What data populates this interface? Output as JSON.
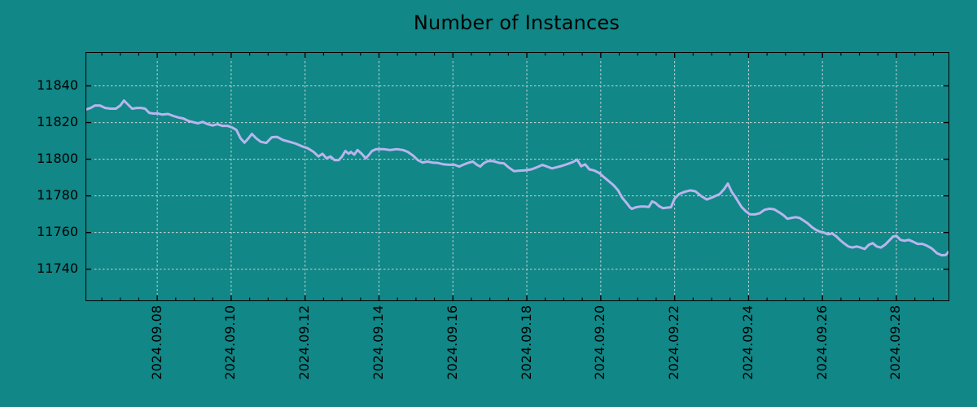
{
  "style": {
    "background": "#118787",
    "plot_background": "#118787",
    "line_color": "#b9b5ee",
    "grid_color": "#c9d6d6",
    "axis_color": "#000000",
    "text_color": "#000000"
  },
  "chart_data": {
    "type": "line",
    "title": "Number of Instances",
    "xlabel": "",
    "ylabel": "",
    "legend": null,
    "grid": {
      "show": true,
      "style": "dashed"
    },
    "x_axis": {
      "unit": "date (September 2024, fractional day)",
      "lim": [
        6.08,
        29.41
      ],
      "major_tick_days": [
        8,
        10,
        12,
        14,
        16,
        18,
        20,
        22,
        24,
        26,
        28
      ],
      "major_tick_labels": [
        "2024.09.08",
        "2024.09.10",
        "2024.09.12",
        "2024.09.14",
        "2024.09.16",
        "2024.09.18",
        "2024.09.20",
        "2024.09.22",
        "2024.09.24",
        "2024.09.26",
        "2024.09.28"
      ],
      "minor_tick_step": 0.5,
      "tick_label_rotation_deg": 90
    },
    "y_axis": {
      "lim": [
        11723,
        11858
      ],
      "major_ticks": [
        11840,
        11820,
        11800,
        11780,
        11760,
        11740
      ],
      "major_tick_labels": [
        "11840",
        "11820",
        "11800",
        "11780",
        "11760",
        "11740"
      ]
    },
    "series": [
      {
        "name": "Number of Instances",
        "color": "#b9b5ee",
        "points": [
          [
            6.08,
            11827.2
          ],
          [
            6.2,
            11828
          ],
          [
            6.31,
            11829.3
          ],
          [
            6.45,
            11829.3
          ],
          [
            6.59,
            11828
          ],
          [
            6.74,
            11827.6
          ],
          [
            6.88,
            11827.6
          ],
          [
            7.0,
            11829.3
          ],
          [
            7.1,
            11832
          ],
          [
            7.21,
            11829.8
          ],
          [
            7.32,
            11827.6
          ],
          [
            7.45,
            11828
          ],
          [
            7.56,
            11828
          ],
          [
            7.67,
            11827.6
          ],
          [
            7.78,
            11825.3
          ],
          [
            7.89,
            11824.9
          ],
          [
            8.0,
            11825
          ],
          [
            8.13,
            11824.4
          ],
          [
            8.29,
            11824.7
          ],
          [
            8.44,
            11823.6
          ],
          [
            8.57,
            11822.8
          ],
          [
            8.71,
            11822.2
          ],
          [
            8.84,
            11820.9
          ],
          [
            8.97,
            11820.2
          ],
          [
            9.1,
            11819.6
          ],
          [
            9.23,
            11820.4
          ],
          [
            9.37,
            11819.1
          ],
          [
            9.5,
            11818.4
          ],
          [
            9.63,
            11819.1
          ],
          [
            9.76,
            11818.2
          ],
          [
            9.9,
            11818.2
          ],
          [
            10.03,
            11817.3
          ],
          [
            10.14,
            11816
          ],
          [
            10.25,
            11811.5
          ],
          [
            10.36,
            11809
          ],
          [
            10.45,
            11811
          ],
          [
            10.56,
            11813.8
          ],
          [
            10.67,
            11811.5
          ],
          [
            10.8,
            11809.5
          ],
          [
            10.95,
            11808.9
          ],
          [
            11.1,
            11812
          ],
          [
            11.24,
            11812.2
          ],
          [
            11.4,
            11810.5
          ],
          [
            11.58,
            11809.5
          ],
          [
            11.75,
            11808.5
          ],
          [
            11.92,
            11807
          ],
          [
            12.07,
            11806
          ],
          [
            12.23,
            11804
          ],
          [
            12.36,
            11801.5
          ],
          [
            12.47,
            11803
          ],
          [
            12.58,
            11800.5
          ],
          [
            12.69,
            11801.5
          ],
          [
            12.8,
            11799.5
          ],
          [
            12.91,
            11799.5
          ],
          [
            13.0,
            11801.5
          ],
          [
            13.09,
            11804.5
          ],
          [
            13.18,
            11803
          ],
          [
            13.24,
            11804
          ],
          [
            13.33,
            11802.5
          ],
          [
            13.42,
            11805
          ],
          [
            13.53,
            11803
          ],
          [
            13.64,
            11800.5
          ],
          [
            13.73,
            11802.5
          ],
          [
            13.81,
            11804.5
          ],
          [
            13.92,
            11805.5
          ],
          [
            14.12,
            11805.5
          ],
          [
            14.3,
            11805
          ],
          [
            14.48,
            11805.5
          ],
          [
            14.65,
            11805
          ],
          [
            14.78,
            11804
          ],
          [
            14.92,
            11802
          ],
          [
            15.05,
            11799.5
          ],
          [
            15.18,
            11798.2
          ],
          [
            15.31,
            11798.7
          ],
          [
            15.44,
            11798.2
          ],
          [
            15.58,
            11798
          ],
          [
            15.73,
            11797.3
          ],
          [
            15.88,
            11797
          ],
          [
            16.04,
            11797
          ],
          [
            16.17,
            11796
          ],
          [
            16.28,
            11797
          ],
          [
            16.41,
            11798
          ],
          [
            16.54,
            11798.7
          ],
          [
            16.65,
            11797
          ],
          [
            16.74,
            11796
          ],
          [
            16.83,
            11797.8
          ],
          [
            16.94,
            11799
          ],
          [
            17.09,
            11799
          ],
          [
            17.25,
            11798
          ],
          [
            17.38,
            11797.8
          ],
          [
            17.51,
            11795.5
          ],
          [
            17.65,
            11793.5
          ],
          [
            17.82,
            11793.8
          ],
          [
            17.98,
            11794
          ],
          [
            18.13,
            11794.5
          ],
          [
            18.26,
            11795.5
          ],
          [
            18.42,
            11796.9
          ],
          [
            18.55,
            11796
          ],
          [
            18.68,
            11795
          ],
          [
            18.84,
            11795.8
          ],
          [
            18.97,
            11796.5
          ],
          [
            19.12,
            11797.5
          ],
          [
            19.25,
            11798.5
          ],
          [
            19.36,
            11799.8
          ],
          [
            19.47,
            11796.2
          ],
          [
            19.58,
            11797.2
          ],
          [
            19.69,
            11794.5
          ],
          [
            19.83,
            11793.8
          ],
          [
            19.96,
            11792.5
          ],
          [
            20.09,
            11790.2
          ],
          [
            20.22,
            11788
          ],
          [
            20.35,
            11785.8
          ],
          [
            20.47,
            11783
          ],
          [
            20.58,
            11779
          ],
          [
            20.69,
            11776.4
          ],
          [
            20.78,
            11774
          ],
          [
            20.84,
            11772.9
          ],
          [
            20.95,
            11773.8
          ],
          [
            21.08,
            11774.2
          ],
          [
            21.19,
            11774.2
          ],
          [
            21.3,
            11774
          ],
          [
            21.39,
            11777
          ],
          [
            21.48,
            11776.2
          ],
          [
            21.57,
            11774.5
          ],
          [
            21.68,
            11773.3
          ],
          [
            21.79,
            11773.6
          ],
          [
            21.9,
            11773.8
          ],
          [
            22.0,
            11778.5
          ],
          [
            22.12,
            11781
          ],
          [
            22.27,
            11782.2
          ],
          [
            22.42,
            11783
          ],
          [
            22.56,
            11782.5
          ],
          [
            22.71,
            11780
          ],
          [
            22.87,
            11778
          ],
          [
            23.0,
            11779
          ],
          [
            23.11,
            11780
          ],
          [
            23.22,
            11781
          ],
          [
            23.33,
            11783.5
          ],
          [
            23.44,
            11786.7
          ],
          [
            23.55,
            11782
          ],
          [
            23.64,
            11779.5
          ],
          [
            23.73,
            11776.5
          ],
          [
            23.81,
            11774
          ],
          [
            23.92,
            11771.7
          ],
          [
            24.03,
            11770
          ],
          [
            24.17,
            11769.9
          ],
          [
            24.3,
            11770.5
          ],
          [
            24.43,
            11772.4
          ],
          [
            24.56,
            11773
          ],
          [
            24.69,
            11772.7
          ],
          [
            24.83,
            11771
          ],
          [
            24.94,
            11769.5
          ],
          [
            25.05,
            11767.5
          ],
          [
            25.16,
            11768
          ],
          [
            25.27,
            11768.4
          ],
          [
            25.38,
            11768
          ],
          [
            25.49,
            11766.5
          ],
          [
            25.6,
            11765
          ],
          [
            25.71,
            11763
          ],
          [
            25.82,
            11761.5
          ],
          [
            25.93,
            11760.5
          ],
          [
            26.04,
            11760
          ],
          [
            26.15,
            11759
          ],
          [
            26.26,
            11759.5
          ],
          [
            26.37,
            11758
          ],
          [
            26.48,
            11755.8
          ],
          [
            26.59,
            11754
          ],
          [
            26.7,
            11752.4
          ],
          [
            26.81,
            11751.8
          ],
          [
            26.92,
            11752.4
          ],
          [
            27.03,
            11751.8
          ],
          [
            27.14,
            11751
          ],
          [
            27.25,
            11753.3
          ],
          [
            27.36,
            11754.2
          ],
          [
            27.47,
            11752.4
          ],
          [
            27.58,
            11751.8
          ],
          [
            27.69,
            11753.3
          ],
          [
            27.8,
            11755.5
          ],
          [
            27.91,
            11757.8
          ],
          [
            28.0,
            11758.2
          ],
          [
            28.11,
            11756
          ],
          [
            28.22,
            11755.5
          ],
          [
            28.33,
            11756
          ],
          [
            28.44,
            11755.1
          ],
          [
            28.57,
            11753.8
          ],
          [
            28.7,
            11753.8
          ],
          [
            28.83,
            11752.8
          ],
          [
            28.96,
            11751.3
          ],
          [
            29.1,
            11748.7
          ],
          [
            29.23,
            11747.6
          ],
          [
            29.34,
            11747.8
          ],
          [
            29.41,
            11749.5
          ]
        ]
      }
    ]
  }
}
